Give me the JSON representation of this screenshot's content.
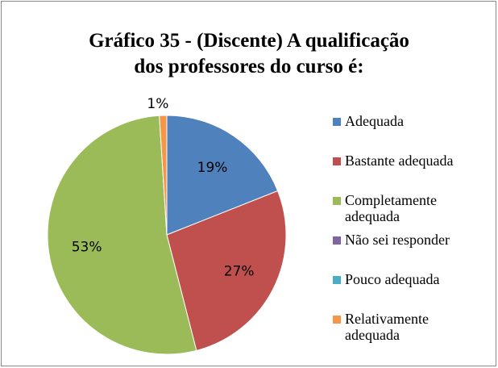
{
  "chart_data": {
    "type": "pie",
    "title": [
      "Gráfico 35 - (Discente) A qualificação",
      "dos professores do curso é:"
    ],
    "categories": [
      "Adequada",
      "Bastante adequada",
      "Completamente adequada",
      "Não sei responder",
      "Pouco adequada",
      "Relativamente adequada"
    ],
    "values": [
      19,
      27,
      53,
      0,
      0,
      1
    ],
    "value_labels": [
      "19%",
      "27%",
      "53%",
      null,
      null,
      "1%"
    ],
    "colors": [
      "#4f81bd",
      "#c0504d",
      "#9bbb59",
      "#8064a2",
      "#4bacc6",
      "#f79646"
    ],
    "legend": "right"
  }
}
